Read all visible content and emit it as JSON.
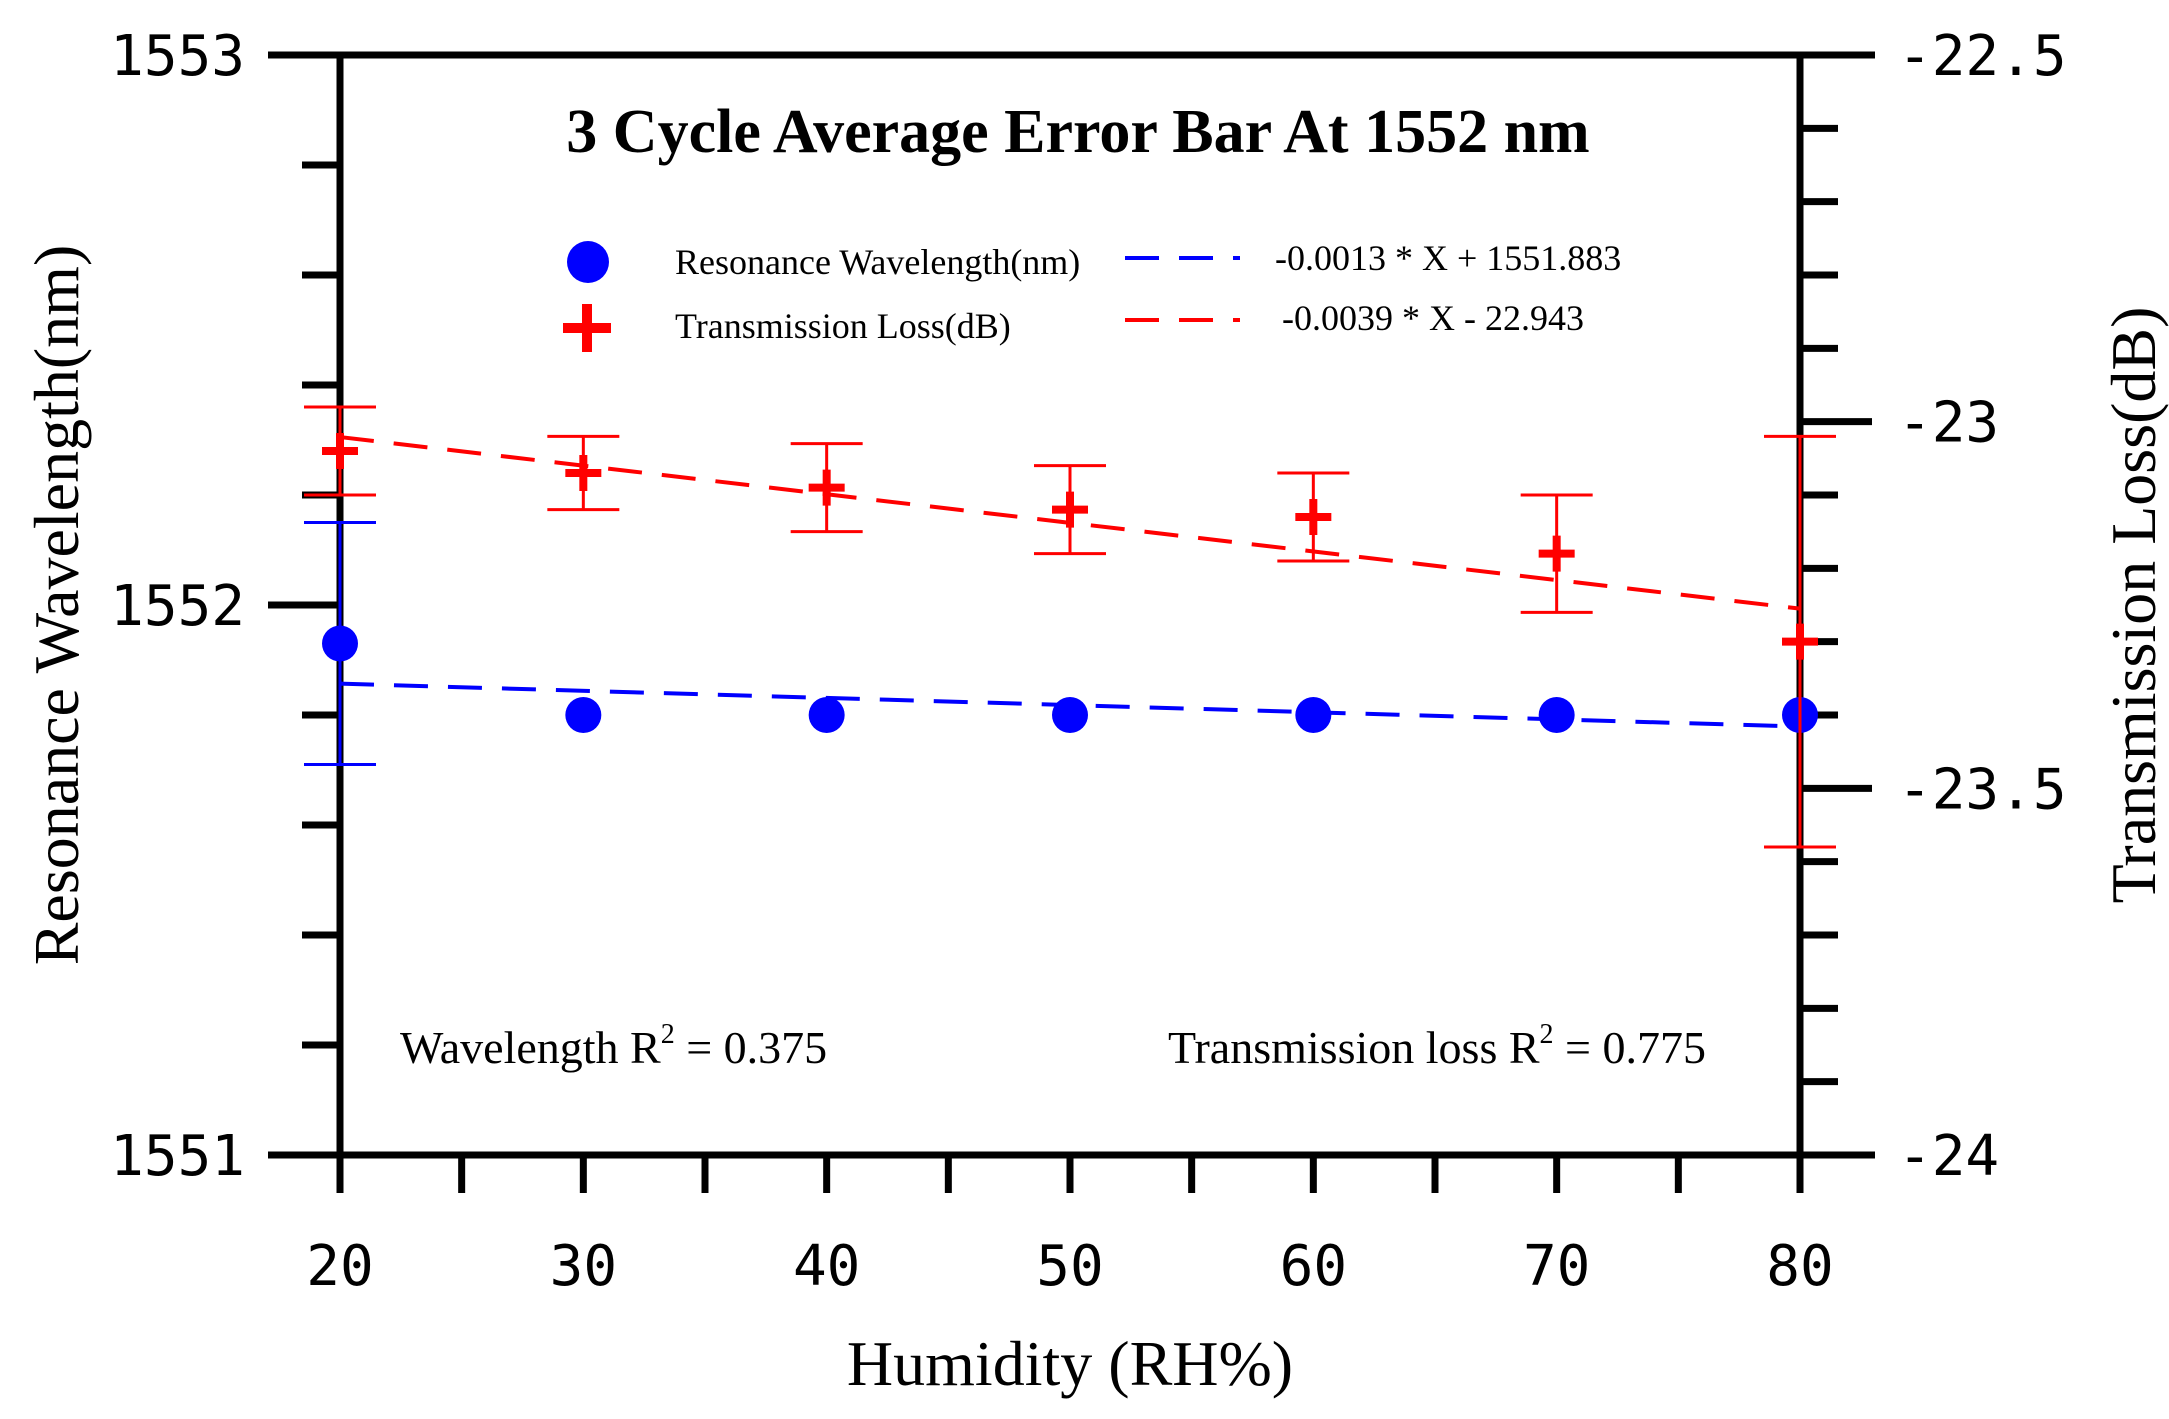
{
  "chart_data": {
    "type": "scatter",
    "title": "3 Cycle Average Error Bar At 1552 nm",
    "xlabel": "Humidity (RH%)",
    "ylabel_left": "Resonance Wavelength(nm)",
    "ylabel_right": "Transmission Loss(dB)",
    "x_ticks": [
      "20",
      "30",
      "40",
      "50",
      "60",
      "70",
      "80"
    ],
    "xlim": [
      20,
      80
    ],
    "ylim_left": [
      1551,
      1553
    ],
    "ylim_right": [
      -24,
      -22.5
    ],
    "y_ticks_left": [
      "1551",
      "1552",
      "1553"
    ],
    "y_ticks_right": [
      "-24",
      "-23.5",
      "-23",
      "-22.5"
    ],
    "series": [
      {
        "name": "Resonance Wavelength(nm)",
        "axis": "left",
        "color": "#0000ff",
        "marker": "circle",
        "x": [
          20,
          30,
          40,
          50,
          60,
          70,
          80
        ],
        "y": [
          1551.93,
          1551.8,
          1551.8,
          1551.8,
          1551.8,
          1551.8,
          1551.8
        ],
        "err": [
          0.22,
          0.0,
          0.0,
          0.0,
          0.0,
          0.0,
          0.0
        ],
        "fit_label": "-0.0013 * X + 1551.883",
        "fit": {
          "slope": -0.0013,
          "intercept": 1551.883
        }
      },
      {
        "name": "Transmission Loss(dB)",
        "axis": "right",
        "color": "#ff0000",
        "marker": "plus",
        "x": [
          20,
          30,
          40,
          50,
          60,
          70,
          80
        ],
        "y": [
          -23.04,
          -23.07,
          -23.09,
          -23.12,
          -23.13,
          -23.18,
          -23.3
        ],
        "err": [
          0.06,
          0.05,
          0.06,
          0.06,
          0.06,
          0.08,
          0.28
        ],
        "fit_label": "-0.0039 * X - 22.943",
        "fit": {
          "slope": -0.0039,
          "intercept": -22.943
        }
      }
    ],
    "annotations": {
      "wavelength_prefix": "Wavelength R",
      "wavelength_sup": "2",
      "wavelength_value": " = 0.375",
      "transmission_prefix": "Transmission loss R",
      "transmission_sup": "2",
      "transmission_value": " = 0.775"
    },
    "legend_position": "top-center"
  }
}
